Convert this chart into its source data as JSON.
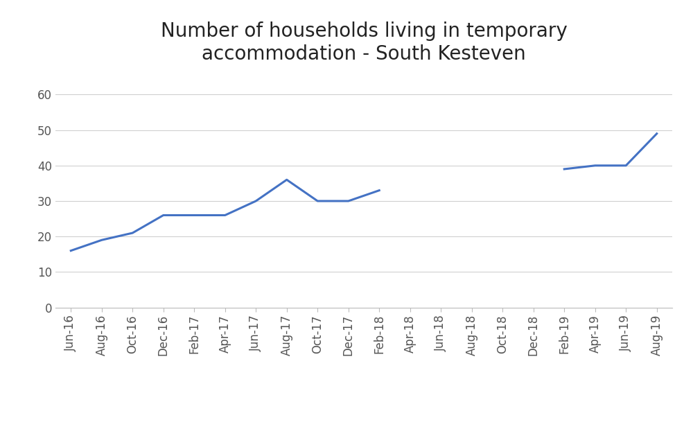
{
  "title": "Number of households living in temporary\naccommodation - South Kesteven",
  "x_labels": [
    "Jun-16",
    "Aug-16",
    "Oct-16",
    "Dec-16",
    "Feb-17",
    "Apr-17",
    "Jun-17",
    "Aug-17",
    "Oct-17",
    "Dec-17",
    "Feb-18",
    "Apr-18",
    "Jun-18",
    "Aug-18",
    "Oct-18",
    "Dec-18",
    "Feb-19",
    "Apr-19",
    "Jun-19",
    "Aug-19"
  ],
  "y_values": [
    16,
    19,
    21,
    26,
    26,
    26,
    30,
    36,
    30,
    30,
    33,
    null,
    null,
    null,
    null,
    null,
    39,
    40,
    40,
    49
  ],
  "line_color": "#4472C4",
  "line_width": 2.2,
  "y_ticks": [
    0,
    10,
    20,
    30,
    40,
    50,
    60
  ],
  "ylim": [
    0,
    65
  ],
  "background_color": "#ffffff",
  "grid_color": "#d0d0d0",
  "title_fontsize": 20,
  "tick_fontsize": 12,
  "tick_color": "#555555"
}
